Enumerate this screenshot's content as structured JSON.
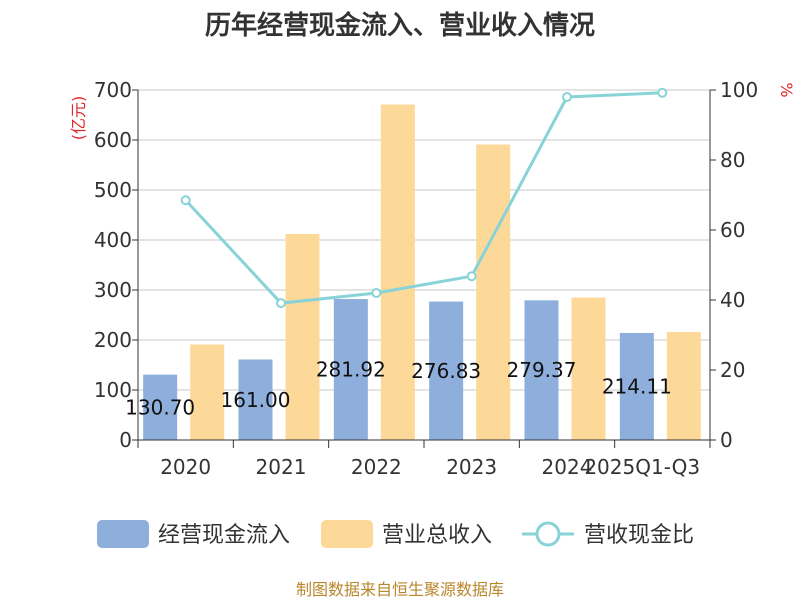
{
  "chart_data": {
    "type": "bar",
    "title": "历年经营现金流入、营业收入情况",
    "categories": [
      "2020",
      "2021",
      "2022",
      "2023",
      "2024",
      "2025Q1-Q3"
    ],
    "left_axis": {
      "unit": "(亿元)",
      "ylim": [
        0,
        700
      ],
      "ticks": [
        "0",
        "100",
        "200",
        "300",
        "400",
        "500",
        "600",
        "700"
      ]
    },
    "right_axis": {
      "unit": "%",
      "ylim": [
        0,
        100
      ],
      "ticks": [
        "0",
        "20",
        "40",
        "60",
        "80",
        "100"
      ]
    },
    "series": [
      {
        "name": "经营现金流入",
        "type": "bar",
        "axis": "left",
        "color": "#8eaedc",
        "values": [
          130.7,
          161.0,
          281.92,
          276.83,
          279.37,
          214.11
        ],
        "labels": [
          "130.70",
          "161.00",
          "281.92",
          "276.83",
          "279.37",
          "214.11"
        ]
      },
      {
        "name": "营业总收入",
        "type": "bar",
        "axis": "left",
        "color": "#fdd999",
        "values": [
          191,
          412,
          671,
          591,
          285,
          216
        ]
      },
      {
        "name": "营收现金比",
        "type": "line",
        "axis": "right",
        "color": "#88d3d8",
        "values": [
          68.5,
          39.1,
          42.0,
          46.8,
          98.0,
          99.2
        ]
      }
    ],
    "grid": true,
    "legend_position": "bottom"
  },
  "source_text": "制图数据来自恒生聚源数据库"
}
